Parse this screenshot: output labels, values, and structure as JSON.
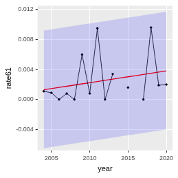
{
  "chart_data": {
    "type": "line",
    "x_label": "year",
    "y_label": "rate61",
    "x": [
      2004,
      2005,
      2006,
      2007,
      2008,
      2009,
      2010,
      2011,
      2012,
      2013,
      2014,
      2015,
      2016,
      2017,
      2018,
      2019,
      2020
    ],
    "series": [
      {
        "color": "#000000",
        "marker": "circle",
        "line_style": "solid",
        "values": [
          0.0011,
          0.0009,
          0.0,
          0.0008,
          0.0,
          0.006,
          0.0008,
          0.0095,
          0.0,
          0.0034,
          null,
          0.0016,
          null,
          0.0,
          0.0096,
          0.0019,
          0.002
        ]
      },
      {
        "color": "#ff0000",
        "marker": "none",
        "line_style": "solid",
        "values": [
          0.0013,
          0.00146,
          0.00161,
          0.00177,
          0.00193,
          0.00209,
          0.00224,
          0.0024,
          0.00256,
          0.00271,
          0.00287,
          0.00303,
          0.00318,
          0.00334,
          0.0035,
          0.00365,
          0.00381
        ]
      }
    ],
    "band": {
      "color": "#0000ff",
      "lower": [
        -0.0065,
        -0.00634,
        -0.00619,
        -0.00603,
        -0.00587,
        -0.00571,
        -0.00556,
        -0.0054,
        -0.00524,
        -0.00509,
        -0.00493,
        -0.00477,
        -0.00462,
        -0.00446,
        -0.0043,
        -0.00415,
        -0.00399
      ],
      "upper": [
        0.0092,
        0.00936,
        0.00951,
        0.00967,
        0.00983,
        0.00999,
        0.01014,
        0.0103,
        0.01046,
        0.01061,
        0.01077,
        0.01093,
        0.01108,
        0.01124,
        0.0114,
        0.01155,
        0.01171
      ]
    },
    "xlim": [
      2003.2,
      2020.8
    ],
    "xticks": [
      2005,
      2010,
      2015,
      2020
    ],
    "ylim": [
      -0.0068,
      0.0125
    ],
    "yticks": [
      {
        "value": -0.004,
        "label": "-0.004"
      },
      {
        "value": 0,
        "label": "0.000"
      },
      {
        "value": 0.004,
        "label": "0.004"
      },
      {
        "value": 0.008,
        "label": "0.008"
      },
      {
        "value": 0.012,
        "label": "0.012"
      }
    ],
    "grid": true
  }
}
